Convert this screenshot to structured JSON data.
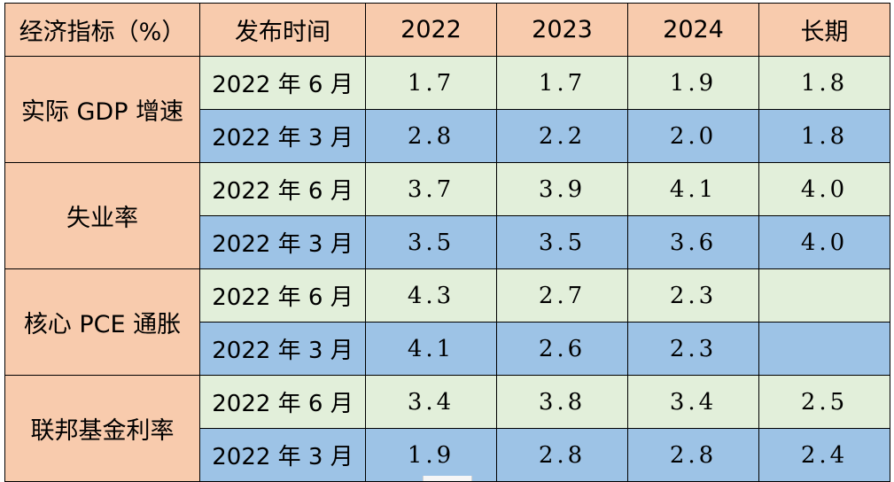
{
  "header": {
    "indicator": "经济指标（%）",
    "release_time": "发布时间",
    "year_2022": "2022",
    "year_2023": "2023",
    "year_2024": "2024",
    "long_term": "长期"
  },
  "indicators": [
    {
      "name": "实际 GDP 增速",
      "rows": [
        {
          "release": "2022 年 6 月",
          "y2022": "1.7",
          "y2023": "1.7",
          "y2024": "1.9",
          "long": "1.8"
        },
        {
          "release": "2022 年 3 月",
          "y2022": "2.8",
          "y2023": "2.2",
          "y2024": "2.0",
          "long": "1.8"
        }
      ]
    },
    {
      "name": "失业率",
      "rows": [
        {
          "release": "2022 年 6 月",
          "y2022": "3.7",
          "y2023": "3.9",
          "y2024": "4.1",
          "long": "4.0"
        },
        {
          "release": "2022 年 3 月",
          "y2022": "3.5",
          "y2023": "3.5",
          "y2024": "3.6",
          "long": "4.0"
        }
      ]
    },
    {
      "name": "核心 PCE 通胀",
      "rows": [
        {
          "release": "2022 年 6 月",
          "y2022": "4.3",
          "y2023": "2.7",
          "y2024": "2.3",
          "long": ""
        },
        {
          "release": "2022 年 3 月",
          "y2022": "4.1",
          "y2023": "2.6",
          "y2024": "2.3",
          "long": ""
        }
      ]
    },
    {
      "name": "联邦基金利率",
      "rows": [
        {
          "release": "2022 年 6 月",
          "y2022": "3.4",
          "y2023": "3.8",
          "y2024": "3.4",
          "long": "2.5"
        },
        {
          "release": "2022 年 3 月",
          "y2022": "1.9",
          "y2023": "2.8",
          "y2024": "2.8",
          "long": "2.4"
        }
      ]
    }
  ],
  "colors": {
    "header_bg": "#f8cbad",
    "indicator_bg": "#f8cbad",
    "june_row_bg": "#e2efda",
    "march_row_bg": "#9dc3e6",
    "border": "#000000"
  }
}
